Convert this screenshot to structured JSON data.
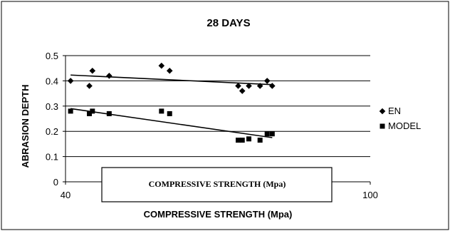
{
  "chart_data": {
    "type": "scatter",
    "title": "28 DAYS",
    "xlabel": "COMPRESSIVE STRENGTH (Mpa)",
    "ylabel": "ABRASION DEPTH",
    "xlim": [
      40,
      100
    ],
    "ylim": [
      0,
      0.5
    ],
    "xticks": [
      "40",
      "100"
    ],
    "yticks": [
      "0",
      "0.1",
      "0.2",
      "0.3",
      "0.4",
      "0.5"
    ],
    "grid": "horizontal",
    "legend_position": "right",
    "annotation": "COMPRESSIVE STRENGTH (Mpa)",
    "series": [
      {
        "name": "EN",
        "marker": "diamond",
        "color": "#000000",
        "x": [
          41,
          44.7,
          45.3,
          48.6,
          58.9,
          60.5,
          74,
          74.8,
          76.1,
          78.3,
          79.7,
          80.7
        ],
        "y": [
          0.4,
          0.38,
          0.44,
          0.42,
          0.46,
          0.44,
          0.38,
          0.36,
          0.38,
          0.38,
          0.4,
          0.38
        ],
        "trend": {
          "x": [
            41,
            80.7
          ],
          "y": [
            0.423,
            0.385
          ]
        }
      },
      {
        "name": "MODEL",
        "marker": "square",
        "color": "#000000",
        "x": [
          41,
          44.7,
          45.3,
          48.6,
          58.9,
          60.5,
          74,
          74.8,
          76.1,
          78.3,
          79.7,
          80.7
        ],
        "y": [
          0.28,
          0.27,
          0.28,
          0.27,
          0.28,
          0.27,
          0.165,
          0.165,
          0.17,
          0.165,
          0.19,
          0.19
        ],
        "trend": {
          "x": [
            41,
            80.7
          ],
          "y": [
            0.29,
            0.175
          ]
        }
      }
    ]
  }
}
